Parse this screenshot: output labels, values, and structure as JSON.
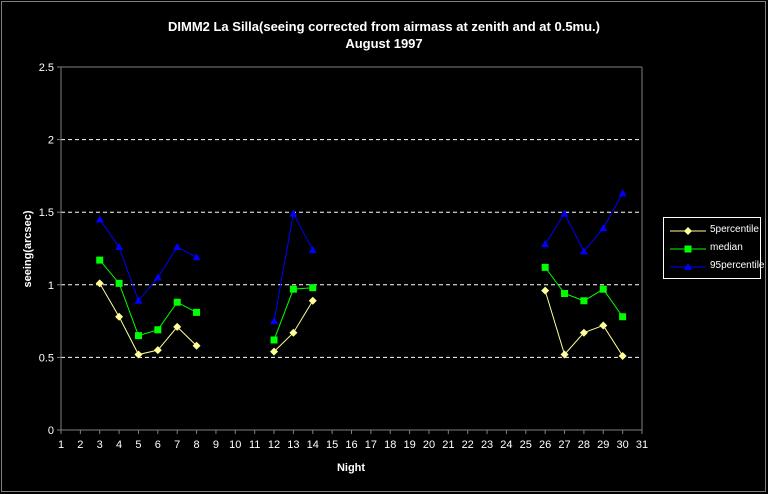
{
  "chart_data": {
    "type": "line",
    "title": "DIMM2 La Silla(seeing corrected from airmass at zenith and at 0.5mu.)",
    "subtitle": "August 1997",
    "xlabel": "Night",
    "ylabel": "seeing(arcsec)",
    "x_ticks": [
      "1",
      "2",
      "3",
      "4",
      "5",
      "6",
      "7",
      "8",
      "9",
      "10",
      "11",
      "12",
      "13",
      "14",
      "15",
      "16",
      "17",
      "18",
      "19",
      "20",
      "21",
      "22",
      "23",
      "24",
      "25",
      "26",
      "27",
      "28",
      "29",
      "30",
      "31"
    ],
    "y_ticks": [
      "0",
      "0.5",
      "1",
      "1.5",
      "2",
      "2.5"
    ],
    "xlim": [
      1,
      31
    ],
    "ylim": [
      0,
      2.5
    ],
    "grid": "horizontal dashed",
    "legend_position": "right",
    "series": [
      {
        "name": "5percentile",
        "color": "#ffff99",
        "marker": "diamond",
        "segments": [
          [
            [
              3,
              1.01
            ],
            [
              4,
              0.78
            ],
            [
              5,
              0.52
            ],
            [
              6,
              0.55
            ],
            [
              7,
              0.71
            ],
            [
              8,
              0.58
            ]
          ],
          [
            [
              12,
              0.54
            ],
            [
              13,
              0.67
            ],
            [
              14,
              0.89
            ]
          ],
          [
            [
              26,
              0.96
            ],
            [
              27,
              0.52
            ],
            [
              28,
              0.67
            ],
            [
              29,
              0.72
            ],
            [
              30,
              0.51
            ]
          ]
        ]
      },
      {
        "name": "median",
        "color": "#00ff00",
        "marker": "square",
        "segments": [
          [
            [
              3,
              1.17
            ],
            [
              4,
              1.01
            ],
            [
              5,
              0.65
            ],
            [
              6,
              0.69
            ],
            [
              7,
              0.88
            ],
            [
              8,
              0.81
            ]
          ],
          [
            [
              12,
              0.62
            ],
            [
              13,
              0.97
            ],
            [
              14,
              0.98
            ]
          ],
          [
            [
              26,
              1.12
            ],
            [
              27,
              0.94
            ],
            [
              28,
              0.89
            ],
            [
              29,
              0.97
            ],
            [
              30,
              0.78
            ]
          ]
        ]
      },
      {
        "name": "95percentile",
        "color": "#0000ff",
        "marker": "triangle",
        "segments": [
          [
            [
              3,
              1.45
            ],
            [
              4,
              1.26
            ],
            [
              5,
              0.89
            ],
            [
              6,
              1.05
            ],
            [
              7,
              1.26
            ],
            [
              8,
              1.19
            ]
          ],
          [
            [
              12,
              0.75
            ],
            [
              13,
              1.49
            ],
            [
              14,
              1.24
            ]
          ],
          [
            [
              26,
              1.28
            ],
            [
              27,
              1.49
            ],
            [
              28,
              1.23
            ],
            [
              29,
              1.39
            ],
            [
              30,
              1.63
            ]
          ]
        ]
      }
    ]
  }
}
